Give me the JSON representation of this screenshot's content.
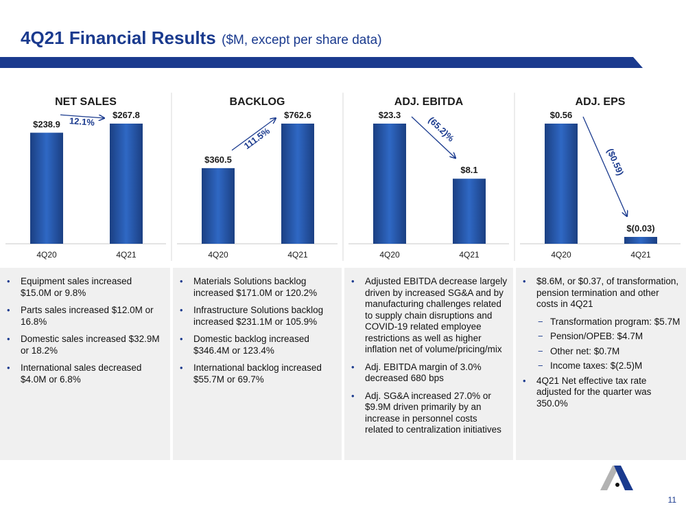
{
  "header": {
    "title": "4Q21 Financial Results",
    "subtitle": "($M, except per share data)"
  },
  "colors": {
    "brand_blue": "#1a3a8e",
    "bar_dark": "#1b3f82",
    "bar_light": "#2f68c4",
    "panel_bg": "#f0f0f0",
    "logo_gray": "#b3b3b3"
  },
  "chart_data": [
    {
      "type": "bar",
      "title": "NET SALES",
      "categories": [
        "4Q20",
        "4Q21"
      ],
      "values": [
        238.9,
        267.8
      ],
      "value_labels": [
        "$238.9",
        "$267.8"
      ],
      "change_label": "12.1%",
      "change_direction": "up",
      "xlabel": "",
      "ylabel": "",
      "grid": false
    },
    {
      "type": "bar",
      "title": "BACKLOG",
      "categories": [
        "4Q20",
        "4Q21"
      ],
      "values": [
        360.5,
        762.6
      ],
      "value_labels": [
        "$360.5",
        "$762.6"
      ],
      "change_label": "111.5%",
      "change_direction": "up",
      "xlabel": "",
      "ylabel": "",
      "grid": false
    },
    {
      "type": "bar",
      "title": "ADJ. EBITDA",
      "categories": [
        "4Q20",
        "4Q21"
      ],
      "values": [
        23.3,
        8.1
      ],
      "value_labels": [
        "$23.3",
        "$8.1"
      ],
      "change_label": "(65.2)%",
      "change_direction": "down",
      "xlabel": "",
      "ylabel": "",
      "grid": false
    },
    {
      "type": "bar",
      "title": "ADJ. EPS",
      "categories": [
        "4Q20",
        "4Q21"
      ],
      "values": [
        0.56,
        -0.03
      ],
      "value_labels": [
        "$0.56",
        "$(0.03)"
      ],
      "change_label": "($0.59)",
      "change_direction": "down",
      "xlabel": "",
      "ylabel": "",
      "grid": false
    }
  ],
  "panels": [
    {
      "bullets": [
        {
          "text": "Equipment sales increased $15.0M or 9.8%"
        },
        {
          "text": "Parts sales increased $12.0M or 16.8%"
        },
        {
          "text": "Domestic sales increased $32.9M or 18.2%"
        },
        {
          "text": "International sales decreased $4.0M or 6.8%"
        }
      ]
    },
    {
      "bullets": [
        {
          "text": "Materials Solutions backlog increased $171.0M or 120.2%"
        },
        {
          "text": "Infrastructure Solutions backlog increased $231.1M or 105.9%"
        },
        {
          "text": "Domestic backlog increased $346.4M or 123.4%"
        },
        {
          "text": "International backlog increased $55.7M or 69.7%"
        }
      ]
    },
    {
      "bullets": [
        {
          "text": "Adjusted EBITDA decrease largely driven by increased SG&A and by manufacturing challenges related to supply chain disruptions and COVID-19 related employee restrictions as well as higher inflation net of volume/pricing/mix"
        },
        {
          "text": "Adj. EBITDA margin of 3.0% decreased 680 bps"
        },
        {
          "text": "Adj. SG&A increased 27.0% or $9.9M driven primarily by an increase in personnel costs related to centralization initiatives"
        }
      ]
    },
    {
      "bullets": [
        {
          "text": "$8.6M, or $0.37, of transformation, pension termination and other costs in 4Q21",
          "sub": [
            "Transformation program: $5.7M",
            "Pension/OPEB: $4.7M",
            "Other net: $0.7M",
            "Income taxes: $(2.5)M"
          ]
        },
        {
          "text": "4Q21 Net effective tax rate adjusted for the quarter was 350.0%"
        }
      ]
    }
  ],
  "footer": {
    "page_number": "11",
    "logo": "astec-a-logo"
  }
}
